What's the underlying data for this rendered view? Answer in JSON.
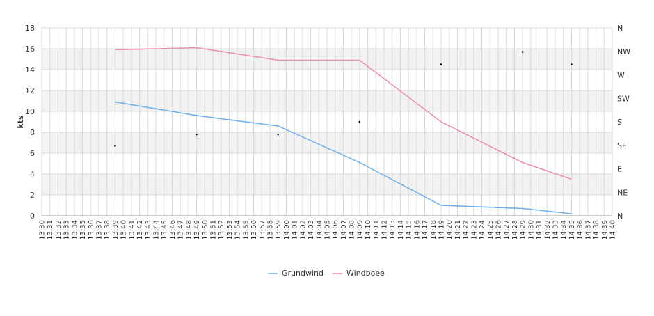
{
  "chart_data": {
    "type": "line",
    "ylabel": "kts",
    "ylim": [
      0,
      18
    ],
    "y_ticks": [
      0,
      2,
      4,
      6,
      8,
      10,
      12,
      14,
      16,
      18
    ],
    "x_start": "13:30",
    "x_end": "14:40",
    "x_ticks": [
      "13:30",
      "13:31",
      "13:32",
      "13:33",
      "13:34",
      "13:35",
      "13:36",
      "13:37",
      "13:38",
      "13:39",
      "13:40",
      "13:41",
      "13:42",
      "13:43",
      "13:44",
      "13:45",
      "13:46",
      "13:47",
      "13:48",
      "13:49",
      "13:50",
      "13:51",
      "13:52",
      "13:53",
      "13:54",
      "13:55",
      "13:56",
      "13:57",
      "13:58",
      "13:59",
      "14:00",
      "14:01",
      "14:02",
      "14:03",
      "14:04",
      "14:05",
      "14:06",
      "14:07",
      "14:08",
      "14:09",
      "14:10",
      "14:11",
      "14:12",
      "14:13",
      "14:14",
      "14:15",
      "14:16",
      "14:17",
      "14:18",
      "14:19",
      "14:20",
      "14:21",
      "14:22",
      "14:23",
      "14:24",
      "14:25",
      "14:26",
      "14:27",
      "14:28",
      "14:29",
      "14:30",
      "14:31",
      "14:32",
      "14:33",
      "14:34",
      "14:35",
      "14:36",
      "14:37",
      "14:38",
      "14:39",
      "14:40"
    ],
    "direction_axis": [
      "N",
      "NE",
      "E",
      "SE",
      "S",
      "SW",
      "W",
      "NW",
      "N"
    ],
    "series": [
      {
        "name": "Grundwind",
        "color": "#6aaef0",
        "points": [
          [
            "13:39",
            10.9
          ],
          [
            "13:49",
            9.6
          ],
          [
            "13:59",
            8.6
          ],
          [
            "14:09",
            5.1
          ],
          [
            "14:19",
            1.0
          ],
          [
            "14:29",
            0.7
          ],
          [
            "14:35",
            0.2
          ]
        ]
      },
      {
        "name": "Windboee",
        "color": "#f08ab8",
        "points": [
          [
            "13:39",
            15.9
          ],
          [
            "13:49",
            16.1
          ],
          [
            "13:59",
            14.9
          ],
          [
            "14:09",
            14.9
          ],
          [
            "14:19",
            9.0
          ],
          [
            "14:29",
            5.1
          ],
          [
            "14:35",
            3.5
          ]
        ]
      }
    ],
    "direction_points": [
      [
        "13:39",
        6.7
      ],
      [
        "13:49",
        7.8
      ],
      [
        "13:59",
        7.8
      ],
      [
        "14:09",
        9.0
      ],
      [
        "14:19",
        14.5
      ],
      [
        "14:29",
        15.7
      ],
      [
        "14:35",
        14.5
      ]
    ],
    "grid": true,
    "legend_position": "bottom"
  },
  "colors": {
    "band": "#f2f2f2",
    "grid": "#d8d8d8",
    "axis": "#999999",
    "direction_marker": "#000000"
  }
}
